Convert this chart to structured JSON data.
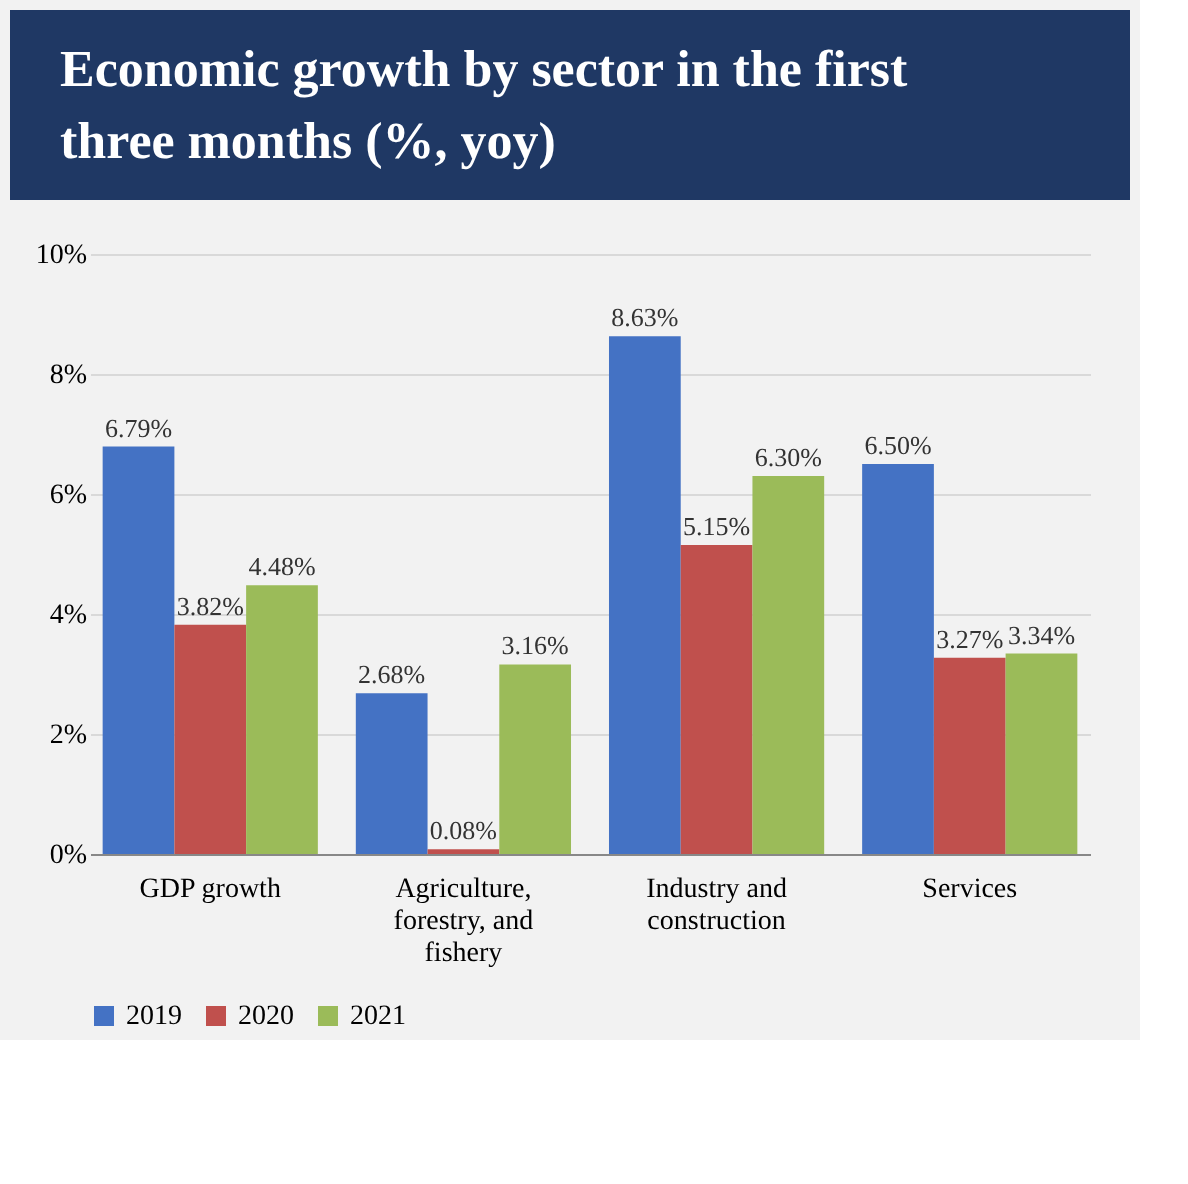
{
  "chart_data": {
    "type": "bar",
    "title": "Economic growth by sector in the first three months (%, yoy)",
    "categories": [
      "GDP growth",
      "Agriculture, forestry, and fishery",
      "Industry and construction",
      "Services"
    ],
    "series": [
      {
        "name": "2019",
        "color": "#4472c4",
        "values": [
          6.79,
          2.68,
          8.63,
          6.5
        ],
        "value_labels": [
          "6.79%",
          "2.68%",
          "8.63%",
          "6.50%"
        ]
      },
      {
        "name": "2020",
        "color": "#c0504d",
        "values": [
          3.82,
          0.08,
          5.15,
          3.27
        ],
        "value_labels": [
          "3.82%",
          "0.08%",
          "5.15%",
          "3.27%"
        ]
      },
      {
        "name": "2021",
        "color": "#9bbb59",
        "values": [
          4.48,
          3.16,
          6.3,
          3.34
        ],
        "value_labels": [
          "4.48%",
          "3.16%",
          "6.30%",
          "3.34%"
        ]
      }
    ],
    "ylim": [
      0,
      10
    ],
    "yticks": [
      {
        "value": 0,
        "label": "0%"
      },
      {
        "value": 2,
        "label": "2%"
      },
      {
        "value": 4,
        "label": "4%"
      },
      {
        "value": 6,
        "label": "6%"
      },
      {
        "value": 8,
        "label": "8%"
      },
      {
        "value": 10,
        "label": "10%"
      }
    ],
    "grid": "y",
    "legend": "bottom"
  }
}
